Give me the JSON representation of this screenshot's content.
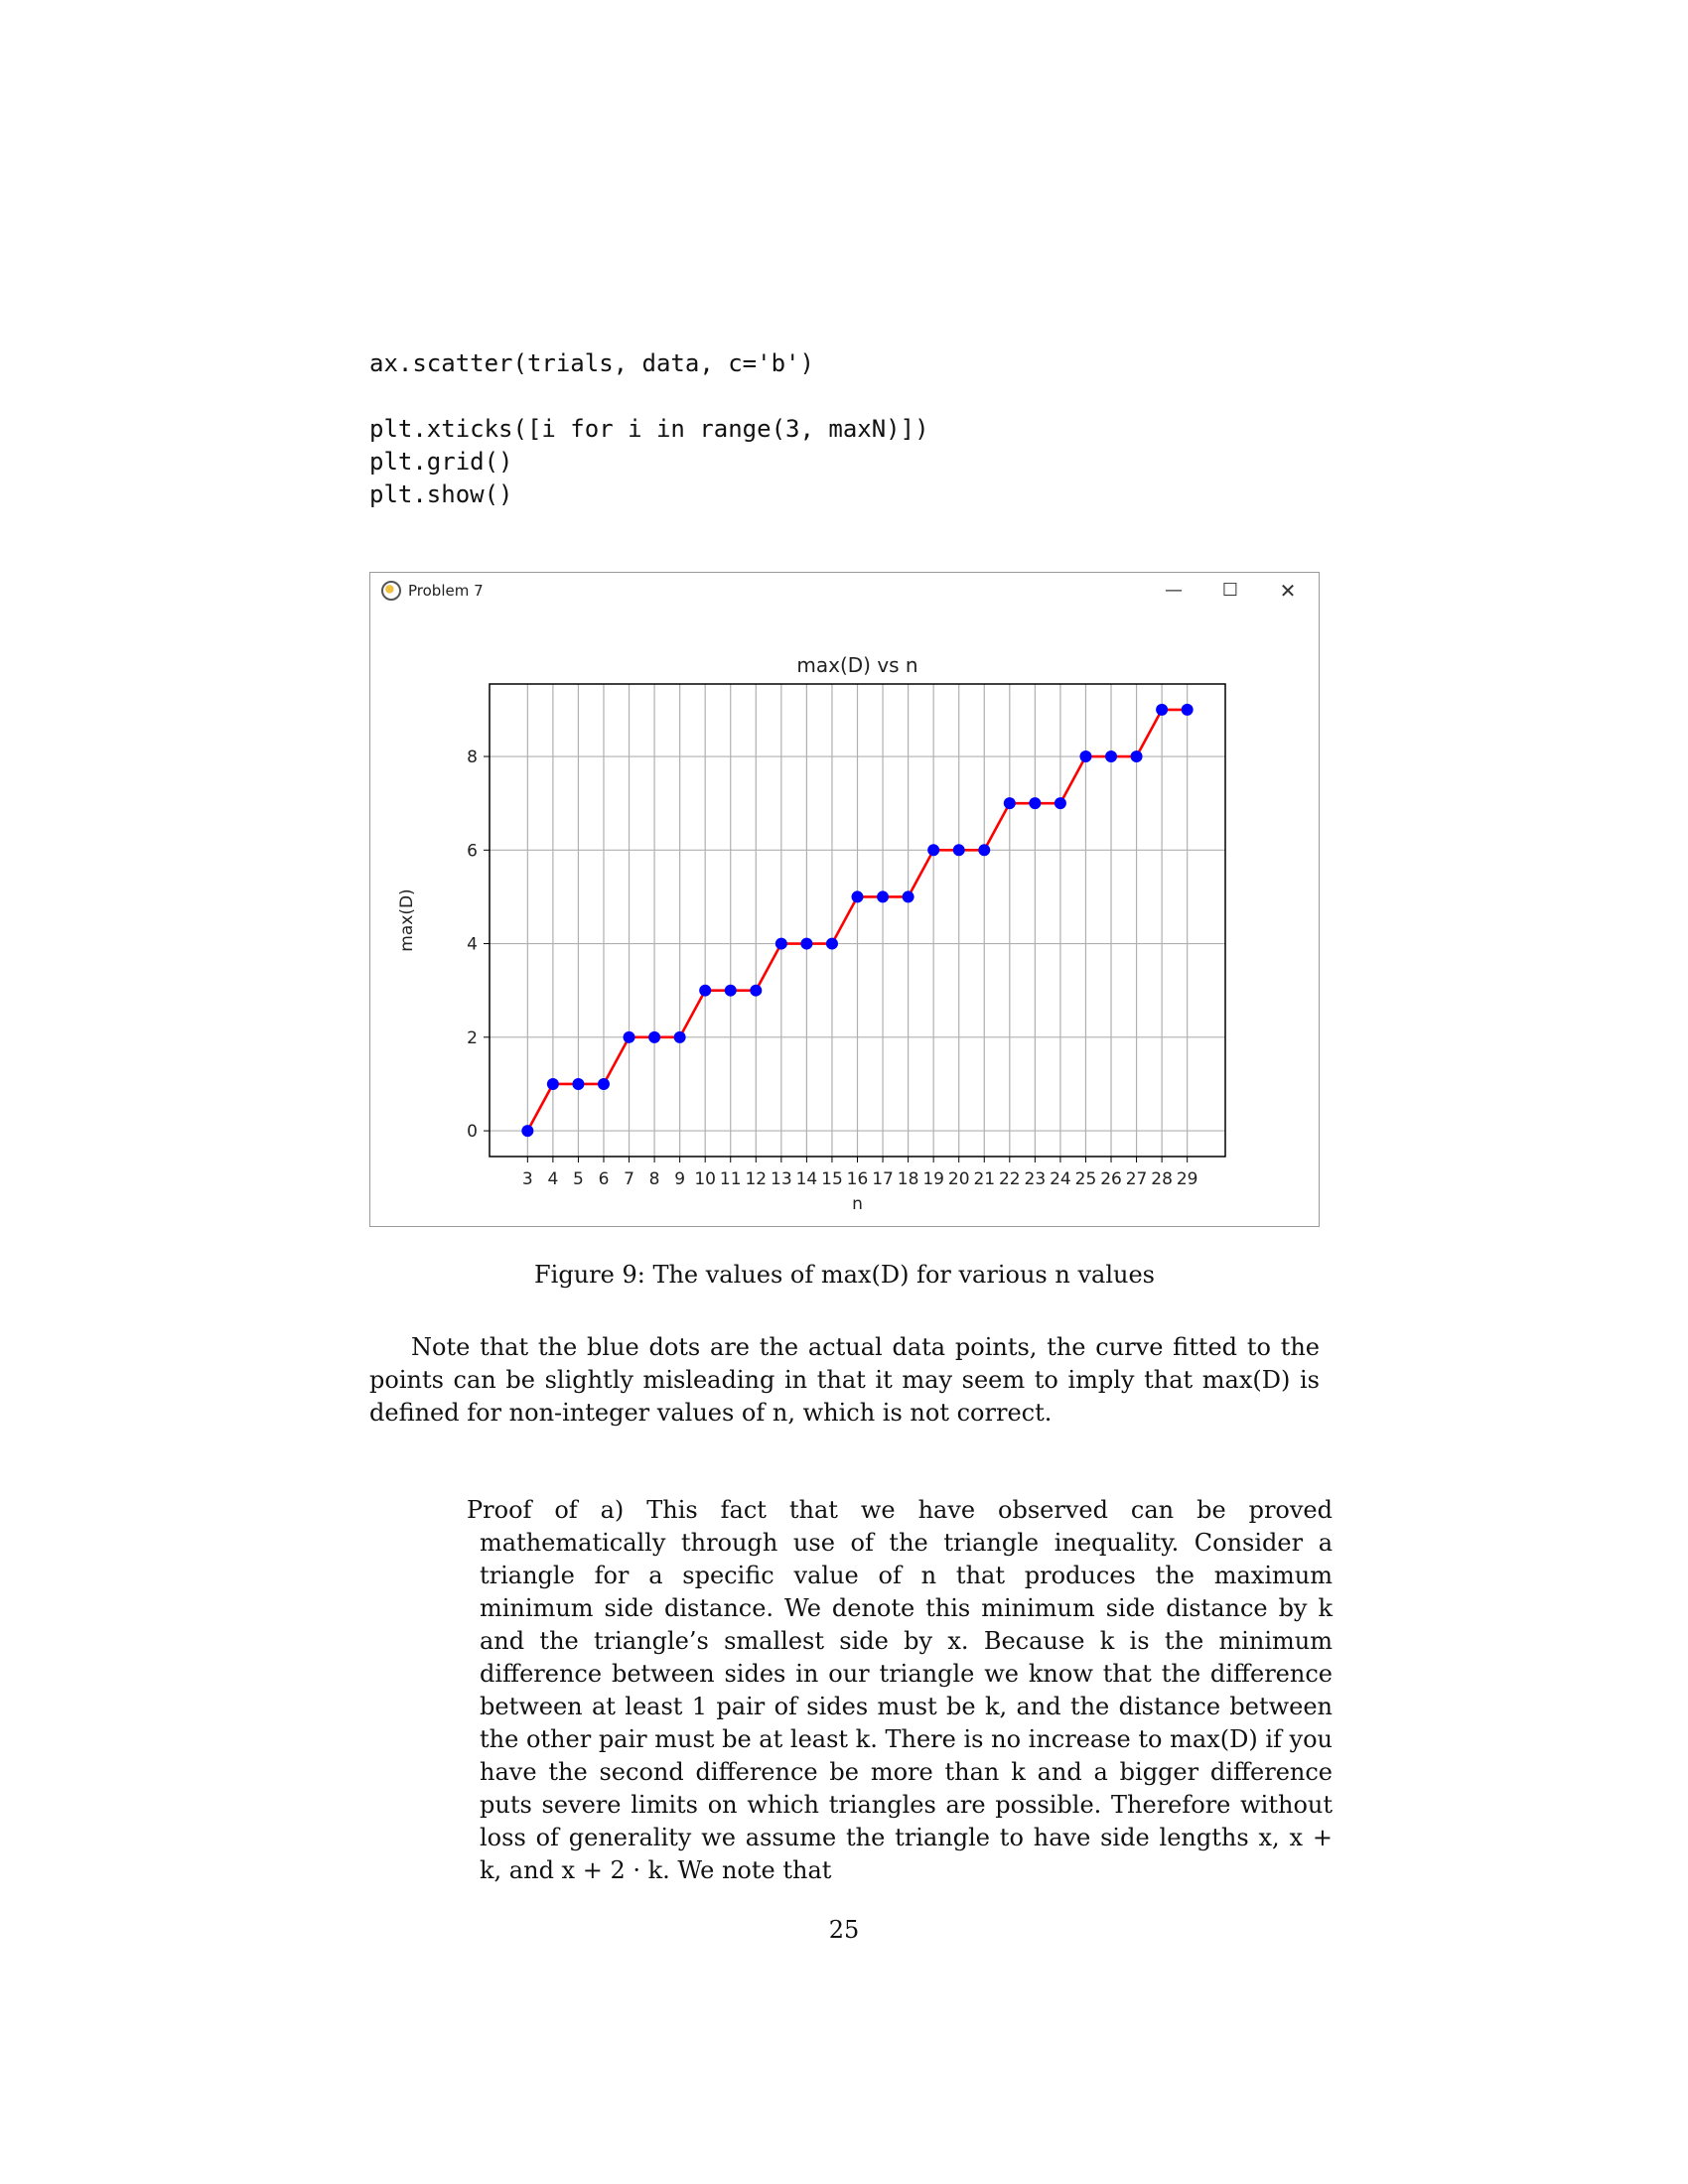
{
  "code_lines": [
    "ax.scatter(trials, data, c='b')",
    "plt.xticks([i for i in range(3, maxN)])",
    "plt.grid()",
    "plt.show()"
  ],
  "window": {
    "title": "Problem 7",
    "minimize_glyph": "—",
    "maximize_glyph": "☐",
    "close_glyph": "✕",
    "icon": "matplotlib-icon"
  },
  "chart_data": {
    "type": "line",
    "title": "max(D) vs n",
    "xlabel": "n",
    "ylabel": "max(D)",
    "x": [
      3,
      4,
      5,
      6,
      7,
      8,
      9,
      10,
      11,
      12,
      13,
      14,
      15,
      16,
      17,
      18,
      19,
      20,
      21,
      22,
      23,
      24,
      25,
      26,
      27,
      28,
      29
    ],
    "y": [
      0,
      1,
      1,
      1,
      2,
      2,
      2,
      3,
      3,
      3,
      4,
      4,
      4,
      5,
      5,
      5,
      6,
      6,
      6,
      7,
      7,
      7,
      8,
      8,
      8,
      9,
      9
    ],
    "xlim": [
      1.5,
      30.5
    ],
    "ylim": [
      -0.55,
      9.55
    ],
    "xticks": [
      3,
      4,
      5,
      6,
      7,
      8,
      9,
      10,
      11,
      12,
      13,
      14,
      15,
      16,
      17,
      18,
      19,
      20,
      21,
      22,
      23,
      24,
      25,
      26,
      27,
      28,
      29
    ],
    "yticks": [
      0,
      2,
      4,
      6,
      8
    ],
    "grid": true,
    "line_color": "#ff0000",
    "marker_color": "#0000ff"
  },
  "caption": "Figure 9: The values of max(D) for various n values",
  "para1": "Note that the blue dots are the actual data points, the curve fitted to the points can be slightly misleading in that it may seem to imply that max(D) is defined for non-integer values of n, which is not correct.",
  "proof": "Proof of a) This fact that we have observed can be proved mathematically through use of the triangle inequality. Consider a triangle for a specific value of n that produces the maximum minimum side distance. We denote this minimum side distance by k and the triangle’s smallest side by x. Because k is the minimum difference between sides in our triangle we know that the difference between at least 1 pair of sides must be k, and the distance between the other pair must be at least k. There is no increase to max(D) if you have the second difference be more than k and a bigger difference puts severe limits on which triangles are possible. Therefore without loss of generality we assume the triangle to have side lengths x, x + k, and x + 2 · k. We note that",
  "page_number": "25"
}
